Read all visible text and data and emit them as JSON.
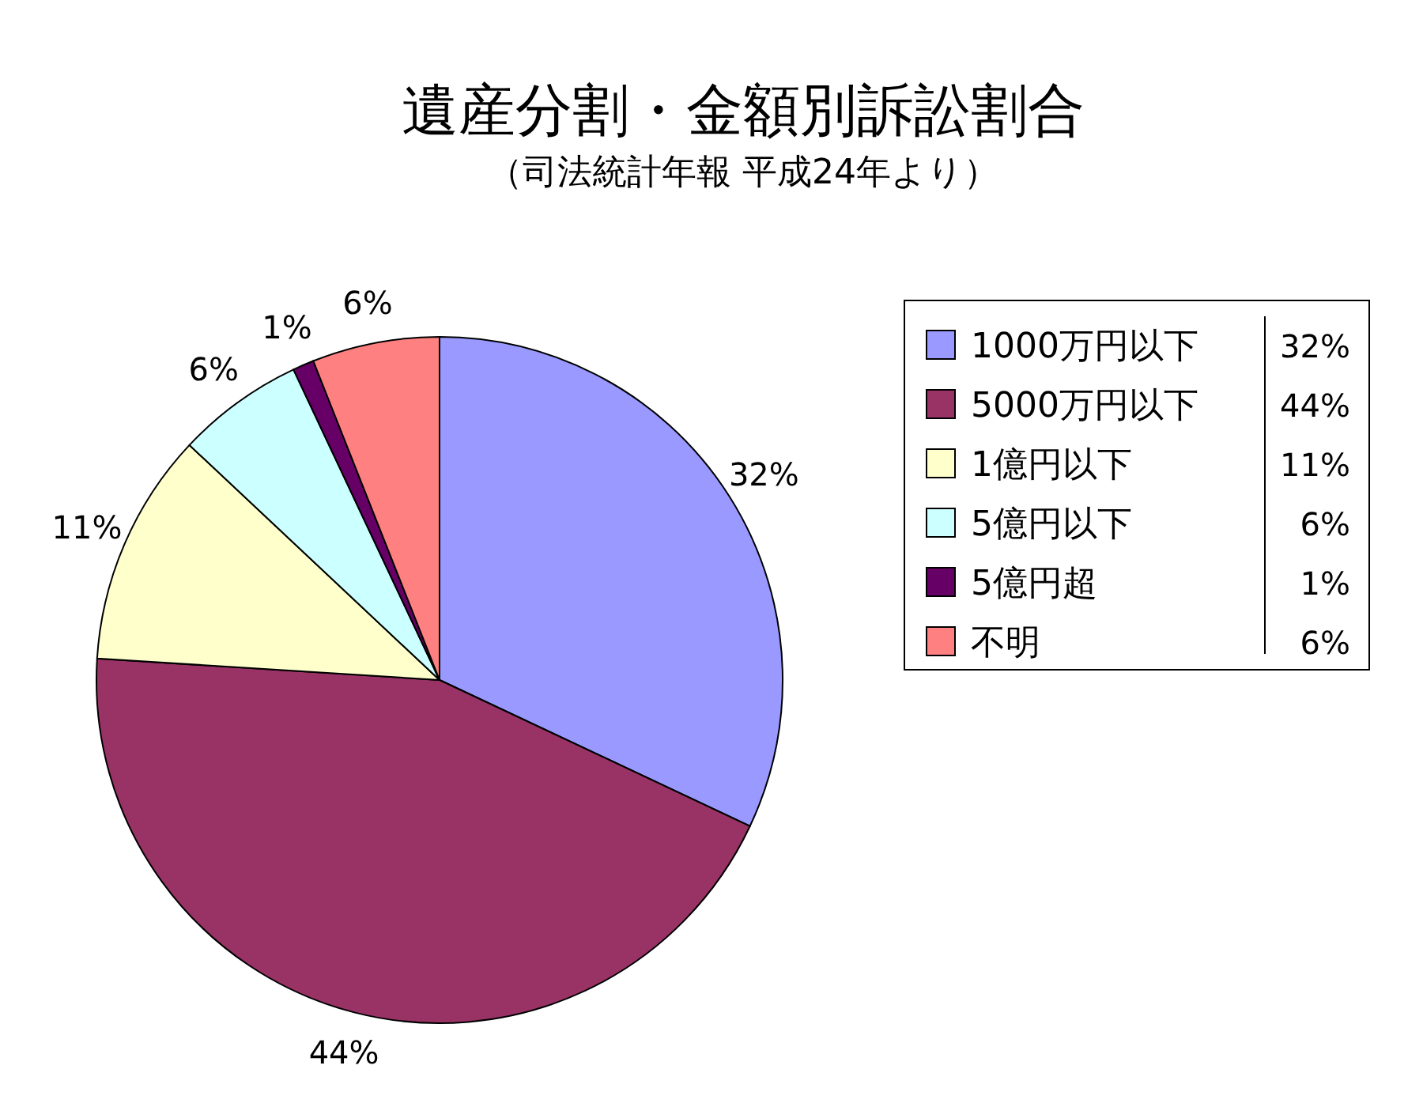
{
  "chart_data": {
    "type": "pie",
    "title": "遺産分割・金額別訴訟割合",
    "subtitle": "（司法統計年報 平成24年より）",
    "categories": [
      "1000万円以下",
      "5000万円以下",
      "1億円以下",
      "5億円以下",
      "5億円超",
      "不明"
    ],
    "values": [
      32,
      44,
      11,
      6,
      1,
      6
    ],
    "value_labels": [
      "32%",
      "44%",
      "11%",
      "6%",
      "1%",
      "6%"
    ],
    "colors": [
      "#9999ff",
      "#993366",
      "#ffffcc",
      "#ccffff",
      "#660066",
      "#ff8080"
    ],
    "legend": "right"
  }
}
